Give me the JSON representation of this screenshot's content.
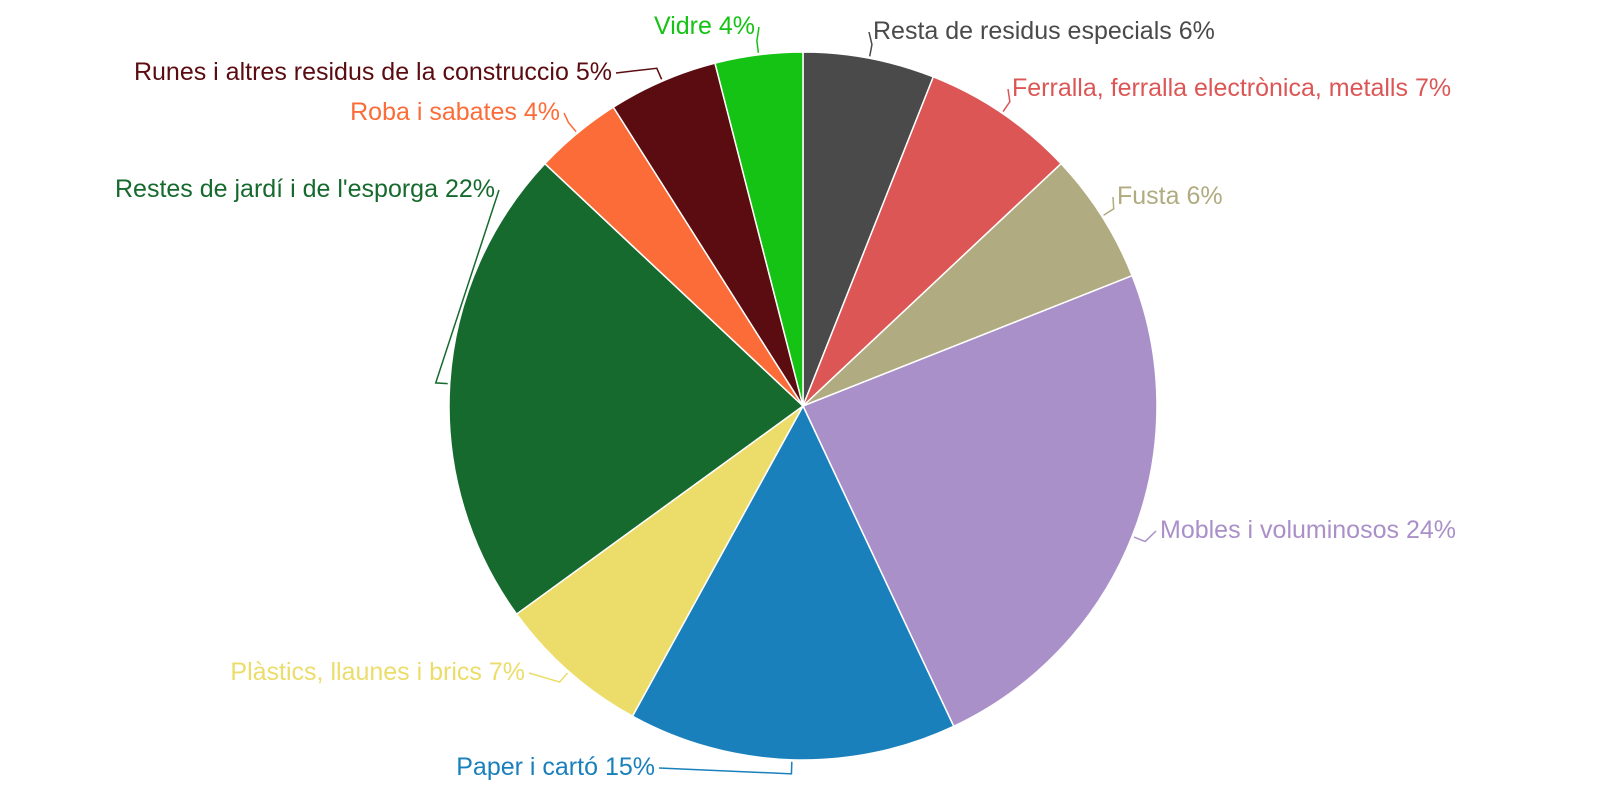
{
  "chart_data": {
    "type": "pie",
    "categories": [
      "Resta de residus especials",
      "Ferralla, ferralla electrònica, metalls",
      "Fusta",
      "Mobles i voluminosos",
      "Paper i cartó",
      "Plàstics, llaunes i brics",
      "Restes de jardí i de l'esporga",
      "Roba i sabates",
      "Runes i altres residus de la construccio",
      "Vidre"
    ],
    "values": [
      6,
      7,
      6,
      24,
      15,
      7,
      22,
      4,
      5,
      4
    ],
    "value_labels": [
      "6%",
      "7%",
      "6%",
      "24%",
      "15%",
      "7%",
      "22%",
      "4%",
      "5%",
      "4%"
    ],
    "colors": [
      "#4a4a4a",
      "#dc5656",
      "#b0ab80",
      "#aa90c8",
      "#1a80bb",
      "#ecdc6a",
      "#166a2e",
      "#fb6c38",
      "#5a0c10",
      "#14c314"
    ]
  }
}
